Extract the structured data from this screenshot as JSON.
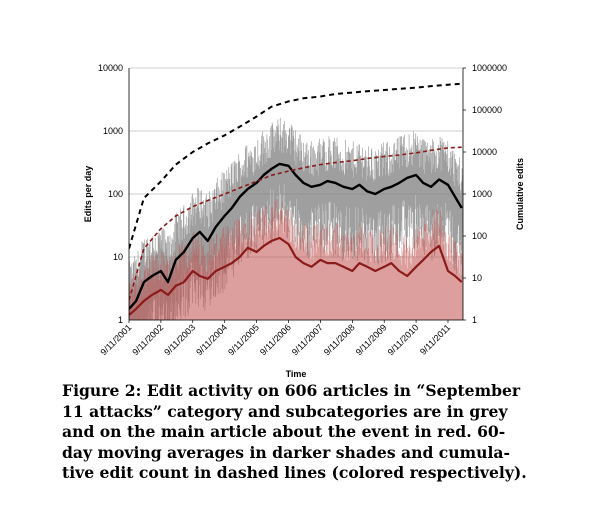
{
  "chart_data": {
    "type": "line",
    "x_label": "Time",
    "y_left_label": "Edits per day",
    "y_right_label": "Cumulative edits",
    "y_left_scale": "log",
    "y_right_scale": "log",
    "y_left_ticks": [
      "1",
      "10",
      "100",
      "1000",
      "10000"
    ],
    "y_right_ticks": [
      "1",
      "10",
      "100",
      "1000",
      "10000",
      "100000",
      "1000000"
    ],
    "y_left_range": [
      1,
      10000
    ],
    "y_right_range": [
      1,
      1000000
    ],
    "x_ticks": [
      "9/11/2001",
      "9/11/2002",
      "9/11/2003",
      "9/11/2004",
      "9/11/2005",
      "9/11/2006",
      "9/11/2007",
      "9/11/2008",
      "9/11/2009",
      "9/11/2010",
      "9/11/2011"
    ],
    "x_range": [
      "2001-09-11",
      "2012-03-01"
    ],
    "grid": "horizontal",
    "colors": {
      "grey": "#7f7f7f",
      "grey_dark": "#000000",
      "red": "#c0504d",
      "red_dark": "#8b1a1a"
    },
    "series": [
      {
        "style": "grey-ma-60",
        "axis": "left",
        "x": [
          "2001-09-11",
          "2001-12-01",
          "2002-03-01",
          "2002-06-01",
          "2002-09-11",
          "2002-12-01",
          "2003-03-01",
          "2003-06-01",
          "2003-09-11",
          "2003-12-01",
          "2004-03-01",
          "2004-06-01",
          "2004-09-11",
          "2004-12-01",
          "2005-03-01",
          "2005-06-01",
          "2005-09-11",
          "2005-12-01",
          "2006-03-01",
          "2006-06-01",
          "2006-09-11",
          "2006-12-01",
          "2007-03-01",
          "2007-06-01",
          "2007-09-11",
          "2007-12-01",
          "2008-03-01",
          "2008-06-01",
          "2008-09-11",
          "2008-12-01",
          "2009-03-01",
          "2009-06-01",
          "2009-09-11",
          "2009-12-01",
          "2010-03-01",
          "2010-06-01",
          "2010-09-11",
          "2010-12-01",
          "2011-03-01",
          "2011-06-01",
          "2011-09-11",
          "2011-12-01",
          "2012-02-15"
        ],
        "y": [
          1.5,
          2,
          4,
          5,
          6,
          4,
          9,
          12,
          20,
          25,
          18,
          30,
          45,
          60,
          90,
          120,
          150,
          200,
          250,
          300,
          280,
          200,
          150,
          130,
          140,
          160,
          150,
          130,
          120,
          140,
          110,
          100,
          120,
          130,
          150,
          180,
          200,
          150,
          130,
          170,
          140,
          90,
          60
        ]
      },
      {
        "style": "red-ma-60",
        "axis": "left",
        "x": [
          "2001-09-11",
          "2001-12-01",
          "2002-03-01",
          "2002-06-01",
          "2002-09-11",
          "2002-12-01",
          "2003-03-01",
          "2003-06-01",
          "2003-09-11",
          "2003-12-01",
          "2004-03-01",
          "2004-06-01",
          "2004-09-11",
          "2004-12-01",
          "2005-03-01",
          "2005-06-01",
          "2005-09-11",
          "2005-12-01",
          "2006-03-01",
          "2006-06-01",
          "2006-09-11",
          "2006-12-01",
          "2007-03-01",
          "2007-06-01",
          "2007-09-11",
          "2007-12-01",
          "2008-03-01",
          "2008-06-01",
          "2008-09-11",
          "2008-12-01",
          "2009-03-01",
          "2009-06-01",
          "2009-09-11",
          "2009-12-01",
          "2010-03-01",
          "2010-06-01",
          "2010-09-11",
          "2010-12-01",
          "2011-03-01",
          "2011-06-01",
          "2011-09-11",
          "2011-12-01",
          "2012-02-15"
        ],
        "y": [
          1.2,
          1.5,
          2,
          2.5,
          3,
          2.5,
          3.5,
          4,
          6,
          5,
          4.5,
          6,
          7,
          8,
          10,
          14,
          12,
          15,
          18,
          20,
          16,
          10,
          8,
          7,
          9,
          8,
          8,
          7,
          6,
          8,
          7,
          6,
          7,
          8,
          6,
          5,
          7,
          9,
          12,
          15,
          6,
          5,
          4
        ]
      },
      {
        "style": "grey-cumulative",
        "axis": "right",
        "x": [
          "2001-09-11",
          "2002-03-01",
          "2002-09-11",
          "2003-03-01",
          "2003-09-11",
          "2004-03-01",
          "2004-09-11",
          "2005-03-01",
          "2005-09-11",
          "2006-03-01",
          "2006-09-11",
          "2007-03-01",
          "2007-09-11",
          "2008-03-01",
          "2008-09-11",
          "2009-03-01",
          "2009-09-11",
          "2010-03-01",
          "2010-09-11",
          "2011-03-01",
          "2011-09-11",
          "2012-02-15"
        ],
        "y": [
          50,
          800,
          2000,
          5000,
          10000,
          16000,
          25000,
          40000,
          70000,
          120000,
          160000,
          190000,
          210000,
          240000,
          260000,
          280000,
          300000,
          320000,
          340000,
          370000,
          400000,
          420000
        ]
      },
      {
        "style": "red-cumulative",
        "axis": "right",
        "x": [
          "2001-09-11",
          "2002-03-01",
          "2002-09-11",
          "2003-03-01",
          "2003-09-11",
          "2004-03-01",
          "2004-09-11",
          "2005-03-01",
          "2005-09-11",
          "2006-03-01",
          "2006-09-11",
          "2007-03-01",
          "2007-09-11",
          "2008-03-01",
          "2008-09-11",
          "2009-03-01",
          "2009-09-11",
          "2010-03-01",
          "2010-09-11",
          "2011-03-01",
          "2011-09-11",
          "2012-02-15"
        ],
        "y": [
          3,
          50,
          150,
          300,
          500,
          700,
          1000,
          1400,
          2000,
          2800,
          3500,
          4200,
          5000,
          5600,
          6200,
          7000,
          7800,
          8500,
          9500,
          11000,
          12500,
          13000
        ]
      }
    ]
  },
  "caption": {
    "lines": [
      "Figure 2: Edit activity on 606 articles in “September",
      "11 attacks” category and subcategories are in grey",
      "and on the main article about the event in red. 60-",
      "day moving averages in darker shades and cumula-",
      "tive edit count in dashed lines (colored respectively)."
    ]
  }
}
